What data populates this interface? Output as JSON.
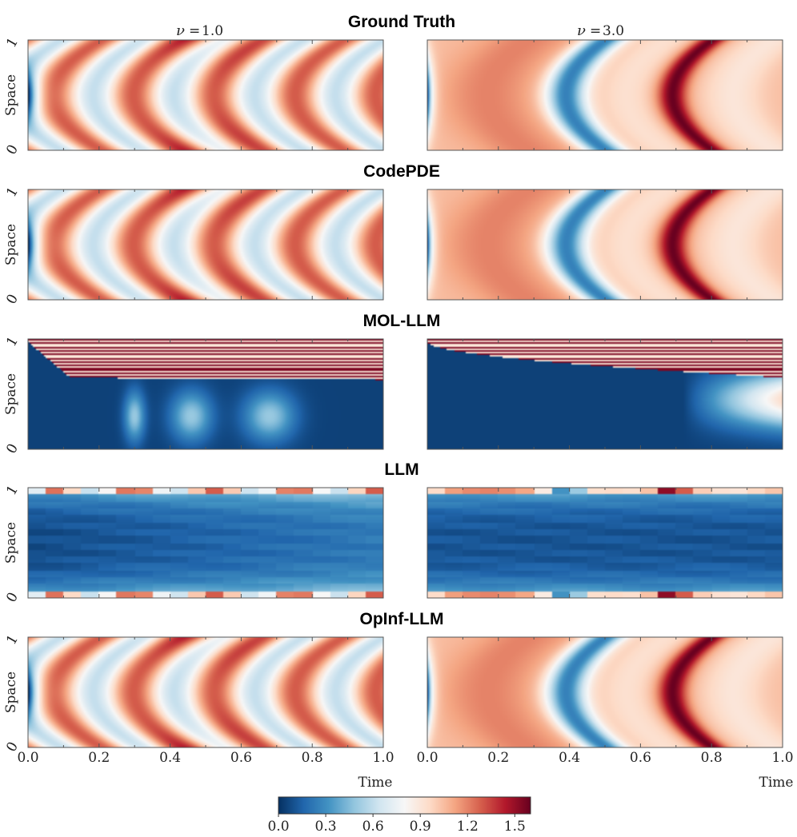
{
  "figure": {
    "params": [
      {
        "symbol": "ν",
        "value": "1.0"
      },
      {
        "symbol": "ν",
        "value": "3.0"
      }
    ],
    "ylabel": "Space",
    "xlabel": "Time"
  },
  "chart_data": {
    "type": "heatmap",
    "x_domain": [
      0.0,
      1.0
    ],
    "y_domain": [
      0,
      1
    ],
    "x_ticks": [
      "0.0",
      "0.2",
      "0.4",
      "0.6",
      "0.8",
      "1.0"
    ],
    "y_ticks": [
      "0",
      "1"
    ],
    "xlabel": "Time",
    "ylabel": "Space",
    "colorbar": {
      "ticks": [
        "0.0",
        "0.3",
        "0.6",
        "0.9",
        "1.2",
        "1.5"
      ],
      "range": [
        0.0,
        1.6
      ],
      "colormap": [
        "#053061",
        "#2166ac",
        "#4393c3",
        "#92c5de",
        "#d1e5f0",
        "#f7f7f7",
        "#fddbc7",
        "#f4a582",
        "#d6604d",
        "#b2182b",
        "#67001f"
      ]
    },
    "rows": [
      {
        "title": "Ground Truth",
        "kind": "smooth"
      },
      {
        "title": "CodePDE",
        "kind": "smooth"
      },
      {
        "title": "MOL-LLM",
        "kind": "mol"
      },
      {
        "title": "LLM",
        "kind": "blocky"
      },
      {
        "title": "OpInf-LLM",
        "kind": "smooth"
      }
    ]
  }
}
